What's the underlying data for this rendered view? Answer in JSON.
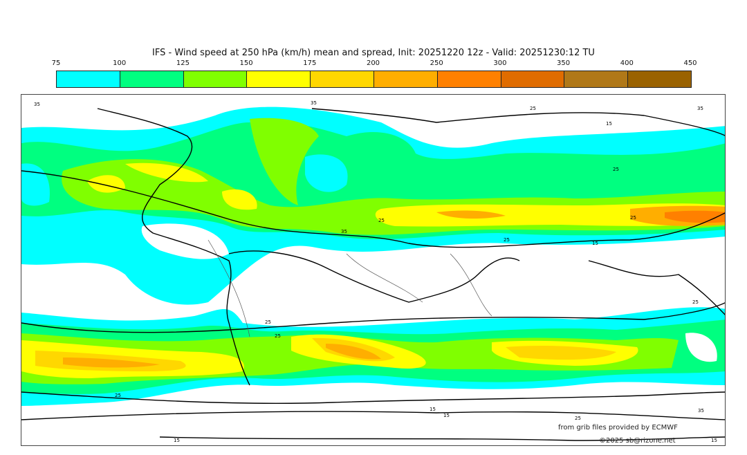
{
  "title": "IFS - Wind speed at 250 hPa (km/h) mean and spread, Init: 20251220 12z - Valid: 20251230:12 TU",
  "colorbar": {
    "ticks": [
      "75",
      "100",
      "125",
      "150",
      "175",
      "200",
      "250",
      "300",
      "350",
      "400",
      "450"
    ],
    "colors": [
      "#00ffff",
      "#00ff80",
      "#80ff00",
      "#ffff00",
      "#ffd700",
      "#ffae00",
      "#ff8000",
      "#e06c00",
      "#b07818",
      "#9a6200"
    ]
  },
  "map": {
    "spread_labels": [
      "35",
      "35",
      "25",
      "15",
      "35",
      "25",
      "25",
      "25",
      "35",
      "25",
      "15",
      "25",
      "25",
      "25",
      "25",
      "15",
      "25",
      "15",
      "15",
      "35",
      "15"
    ]
  },
  "credits": {
    "source": "from grib files provided by ECMWF",
    "copyright": "©2025 sb@rizone.net"
  }
}
